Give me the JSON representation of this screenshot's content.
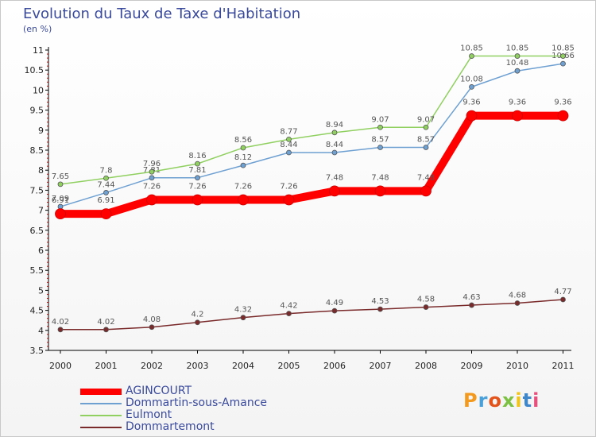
{
  "chart_data": {
    "type": "line",
    "title": "Evolution du Taux de Taxe d'Habitation",
    "subtitle": "(en %)",
    "x": [
      "2000",
      "2001",
      "2002",
      "2003",
      "2004",
      "2005",
      "2006",
      "2007",
      "2008",
      "2009",
      "2010",
      "2011"
    ],
    "ylim": [
      3.5,
      11
    ],
    "yticks": [
      "3.5",
      "4",
      "4.5",
      "5",
      "5.5",
      "6",
      "6.5",
      "7",
      "7.5",
      "8",
      "8.5",
      "9",
      "9.5",
      "10",
      "10.5",
      "11"
    ],
    "grid": false,
    "legend_position": "bottom-left",
    "series": [
      {
        "name": "AGINCOURT",
        "color": "#ff0000",
        "values": [
          6.91,
          6.91,
          7.26,
          7.26,
          7.26,
          7.26,
          7.48,
          7.48,
          7.48,
          9.36,
          9.36,
          9.36
        ],
        "labels": [
          "6.91",
          "6.91",
          "7.26",
          "7.26",
          "7.26",
          "7.26",
          "7.48",
          "7.48",
          "7.48",
          "9.36",
          "9.36",
          "9.36"
        ]
      },
      {
        "name": "Dommartin-sous-Amance",
        "color": "#6ea0d2",
        "values": [
          7.09,
          7.44,
          7.81,
          7.81,
          8.12,
          8.44,
          8.44,
          8.57,
          8.57,
          10.08,
          10.48,
          10.66
        ],
        "labels": [
          "7.09",
          "7.44",
          "7.81",
          "7.81",
          "8.12",
          "8.44",
          "8.44",
          "8.57",
          "8.57",
          "10.08",
          "10.48",
          "10.66"
        ]
      },
      {
        "name": "Eulmont",
        "color": "#90d060",
        "values": [
          7.65,
          7.8,
          7.96,
          8.16,
          8.56,
          8.77,
          8.94,
          9.07,
          9.07,
          10.85,
          10.85,
          10.85
        ],
        "labels": [
          "7.65",
          "7.8",
          "7.96",
          "8.16",
          "8.56",
          "8.77",
          "8.94",
          "9.07",
          "9.07",
          "10.85",
          "10.85",
          "10.85"
        ]
      },
      {
        "name": "Dommartemont",
        "color": "#7a2a2a",
        "values": [
          4.02,
          4.02,
          4.08,
          4.2,
          4.32,
          4.42,
          4.49,
          4.53,
          4.58,
          4.63,
          4.68,
          4.77
        ],
        "labels": [
          "4.02",
          "4.02",
          "4.08",
          "4.2",
          "4.32",
          "4.42",
          "4.49",
          "4.53",
          "4.58",
          "4.63",
          "4.68",
          "4.77"
        ]
      }
    ]
  },
  "brand": {
    "letters": [
      "P",
      "r",
      "o",
      "x",
      "i",
      "t",
      "i"
    ],
    "colors": [
      "#f39a1e",
      "#4aa0d8",
      "#e2541b",
      "#7cc142",
      "#f0c419",
      "#3f87c9",
      "#e94f7d"
    ]
  }
}
